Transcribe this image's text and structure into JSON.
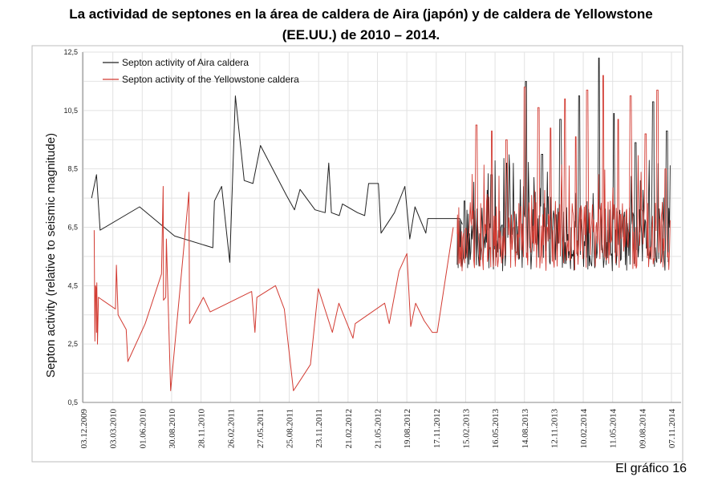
{
  "title_line1": "La actividad de septones en la área de caldera de Aira (japón)  y de caldera de Yellowstone",
  "title_line2": "(EE.UU.) de 2010 – 2014.",
  "footer": "El gráfico 16",
  "colors": {
    "aira": "#222222",
    "yellowstone": "#d23b32",
    "grid": "#e2e2e2",
    "axis": "#888888"
  },
  "chart_data": {
    "type": "line",
    "ylabel": "Septon activity (relative to seismic magnitude)",
    "ylim": [
      0.5,
      12.5
    ],
    "yticks": [
      "0,5",
      "2,5",
      "4,5",
      "6,5",
      "8,5",
      "10,5",
      "12,5"
    ],
    "x_range": [
      "2009-12-03",
      "2014-11-07"
    ],
    "xticks": [
      {
        "date": "2009-12-03",
        "label": "03.12.2009"
      },
      {
        "date": "2010-03-03",
        "label": "03.03.2010"
      },
      {
        "date": "2010-06-01",
        "label": "01.06.2010"
      },
      {
        "date": "2010-08-30",
        "label": "30.08.2010"
      },
      {
        "date": "2010-11-28",
        "label": "28.11.2010"
      },
      {
        "date": "2011-02-26",
        "label": "26.02.2011"
      },
      {
        "date": "2011-05-27",
        "label": "27.05.2011"
      },
      {
        "date": "2011-08-25",
        "label": "25.08.2011"
      },
      {
        "date": "2011-11-23",
        "label": "23.11.2011"
      },
      {
        "date": "2012-02-21",
        "label": "21.02.2012"
      },
      {
        "date": "2012-05-21",
        "label": "21.05.2012"
      },
      {
        "date": "2012-08-19",
        "label": "19.08.2012"
      },
      {
        "date": "2012-11-17",
        "label": "17.11.2012"
      },
      {
        "date": "2013-02-15",
        "label": "15.02.2013"
      },
      {
        "date": "2013-05-16",
        "label": "16.05.2013"
      },
      {
        "date": "2013-08-14",
        "label": "14.08.2013"
      },
      {
        "date": "2013-11-12",
        "label": "12.11.2013"
      },
      {
        "date": "2014-02-10",
        "label": "10.02.2014"
      },
      {
        "date": "2014-05-11",
        "label": "11.05.2014"
      },
      {
        "date": "2014-08-09",
        "label": "09.08.2014"
      },
      {
        "date": "2014-11-07",
        "label": "07.11.2014"
      }
    ],
    "grid": true,
    "legend_position": "top-left",
    "series": [
      {
        "name": "Septon activity of Aira caldera",
        "color": "#222222",
        "points": [
          [
            "2009-12-28",
            7.5
          ],
          [
            "2010-01-12",
            8.3
          ],
          [
            "2010-01-23",
            6.4
          ],
          [
            "2010-05-24",
            7.2
          ],
          [
            "2010-09-08",
            6.2
          ],
          [
            "2011-01-03",
            5.8
          ],
          [
            "2011-01-08",
            7.4
          ],
          [
            "2011-01-30",
            7.9
          ],
          [
            "2011-02-24",
            5.3
          ],
          [
            "2011-03-13",
            11.0
          ],
          [
            "2011-04-09",
            8.1
          ],
          [
            "2011-05-06",
            8.0
          ],
          [
            "2011-05-29",
            9.3
          ],
          [
            "2011-08-16",
            7.6
          ],
          [
            "2011-09-10",
            7.1
          ],
          [
            "2011-09-27",
            7.8
          ],
          [
            "2011-11-12",
            7.1
          ],
          [
            "2011-12-13",
            7.0
          ],
          [
            "2011-12-24",
            8.7
          ],
          [
            "2012-01-01",
            7.0
          ],
          [
            "2012-01-25",
            6.9
          ],
          [
            "2012-02-04",
            7.3
          ],
          [
            "2012-03-21",
            7.0
          ],
          [
            "2012-04-12",
            6.9
          ],
          [
            "2012-04-24",
            8.0
          ],
          [
            "2012-05-24",
            8.0
          ],
          [
            "2012-06-01",
            6.3
          ],
          [
            "2012-07-12",
            7.0
          ],
          [
            "2012-08-13",
            7.9
          ],
          [
            "2012-08-28",
            6.1
          ],
          [
            "2012-09-13",
            7.2
          ],
          [
            "2012-10-16",
            6.3
          ],
          [
            "2012-10-22",
            6.8
          ],
          [
            "2013-01-28",
            6.8
          ],
          [
            "2013-02-05",
            6.6
          ]
        ]
      },
      {
        "name": "Septon activity of the Yellowstone caldera",
        "color": "#d23b32",
        "points": [
          [
            "2010-01-05",
            6.4
          ],
          [
            "2010-01-07",
            2.6
          ],
          [
            "2010-01-09",
            4.5
          ],
          [
            "2010-01-11",
            4.4
          ],
          [
            "2010-01-12",
            2.9
          ],
          [
            "2010-01-13",
            4.6
          ],
          [
            "2010-01-15",
            2.5
          ],
          [
            "2010-01-18",
            4.1
          ],
          [
            "2010-03-11",
            3.7
          ],
          [
            "2010-03-14",
            5.2
          ],
          [
            "2010-03-19",
            3.5
          ],
          [
            "2010-04-13",
            3.0
          ],
          [
            "2010-04-18",
            1.9
          ],
          [
            "2010-06-10",
            3.2
          ],
          [
            "2010-07-30",
            4.9
          ],
          [
            "2010-08-04",
            7.9
          ],
          [
            "2010-08-05",
            4.0
          ],
          [
            "2010-08-12",
            4.1
          ],
          [
            "2010-08-14",
            6.1
          ],
          [
            "2010-08-27",
            0.9
          ],
          [
            "2010-10-22",
            7.7
          ],
          [
            "2010-10-24",
            3.2
          ],
          [
            "2010-12-05",
            4.1
          ],
          [
            "2010-12-26",
            3.6
          ],
          [
            "2011-05-02",
            4.3
          ],
          [
            "2011-05-12",
            2.9
          ],
          [
            "2011-05-18",
            4.1
          ],
          [
            "2011-07-14",
            4.5
          ],
          [
            "2011-08-10",
            3.7
          ],
          [
            "2011-09-07",
            0.9
          ],
          [
            "2011-10-29",
            1.8
          ],
          [
            "2011-11-22",
            4.4
          ],
          [
            "2012-01-04",
            2.9
          ],
          [
            "2012-01-24",
            3.9
          ],
          [
            "2012-03-07",
            2.7
          ],
          [
            "2012-03-14",
            3.2
          ],
          [
            "2012-06-12",
            3.9
          ],
          [
            "2012-06-26",
            3.2
          ],
          [
            "2012-07-26",
            5.0
          ],
          [
            "2012-08-19",
            5.6
          ],
          [
            "2012-08-31",
            3.1
          ],
          [
            "2012-09-15",
            3.9
          ],
          [
            "2012-10-11",
            3.3
          ],
          [
            "2012-11-05",
            2.9
          ],
          [
            "2012-11-20",
            2.9
          ],
          [
            "2013-01-08",
            6.5
          ]
        ]
      }
    ],
    "dense_segment": {
      "range": [
        "2013-01-20",
        "2014-11-03"
      ],
      "note_values": "high-frequency oscillation of both series roughly between 4.8 and 7.5 with spikes",
      "aira_spikes": [
        [
          "2013-02-12",
          7.4
        ],
        [
          "2013-05-05",
          8.3
        ],
        [
          "2013-06-21",
          8.7
        ],
        [
          "2013-08-18",
          11.5
        ],
        [
          "2013-10-07",
          9.0
        ],
        [
          "2013-12-02",
          10.2
        ],
        [
          "2014-01-28",
          11.0
        ],
        [
          "2014-03-30",
          12.3
        ],
        [
          "2014-05-15",
          10.4
        ],
        [
          "2014-07-20",
          9.4
        ],
        [
          "2014-09-12",
          10.8
        ],
        [
          "2014-10-24",
          9.8
        ]
      ],
      "yellowstone_spikes": [
        [
          "2013-03-20",
          10.0
        ],
        [
          "2013-05-06",
          9.8
        ],
        [
          "2013-06-20",
          9.5
        ],
        [
          "2013-08-15",
          11.3
        ],
        [
          "2013-09-26",
          10.6
        ],
        [
          "2013-11-02",
          9.9
        ],
        [
          "2013-12-16",
          10.9
        ],
        [
          "2014-01-18",
          9.6
        ],
        [
          "2014-02-22",
          11.2
        ],
        [
          "2014-04-12",
          11.7
        ],
        [
          "2014-05-28",
          10.2
        ],
        [
          "2014-07-05",
          11.0
        ],
        [
          "2014-08-20",
          9.7
        ],
        [
          "2014-09-25",
          11.2
        ],
        [
          "2014-10-20",
          8.5
        ]
      ]
    }
  }
}
